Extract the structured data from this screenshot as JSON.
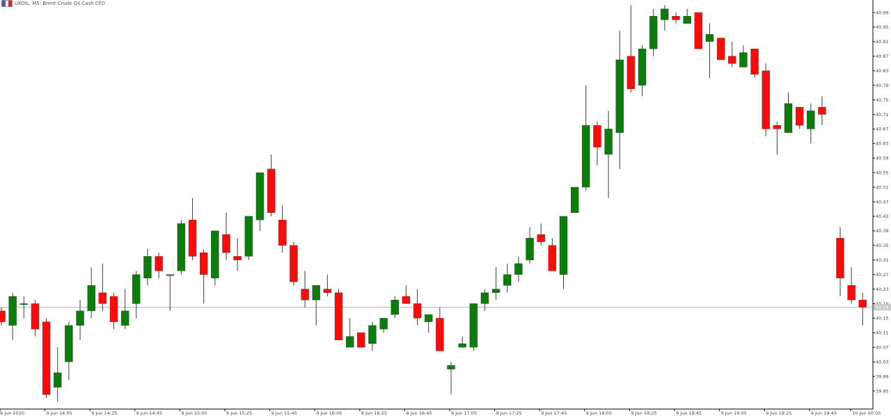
{
  "header": {
    "title": "UKOIL, M5: Brent Crude Oil Cash CFD",
    "icon": "flag-icon"
  },
  "colors": {
    "bull": "#0a7d0a",
    "bear": "#ff0a0a",
    "wick": "#3a3a3a",
    "axis": "#000000",
    "bidline": "#b4b4b4"
  },
  "chart_data": {
    "type": "candlestick",
    "title": "UKOIL, M5: Brent Crude Oil Cash CFD",
    "xlabel": "",
    "ylabel": "",
    "ylim": [
      39.93,
      41.01
    ],
    "grid": false,
    "y_ticks": [
      "39.95",
      "39.99",
      "40.03",
      "40.07",
      "40.11",
      "40.15",
      "40.19",
      "40.23",
      "40.27",
      "40.31",
      "40.35",
      "40.39",
      "40.43",
      "40.47",
      "40.51",
      "40.55",
      "40.59",
      "40.63",
      "40.67",
      "40.71",
      "40.75",
      "40.79",
      "40.83",
      "40.87",
      "40.91",
      "40.95",
      "40.99"
    ],
    "x_ticks": [
      "9 Jun 2020",
      "9 Jun 14:05",
      "9 Jun 14:25",
      "9 Jun 14:45",
      "9 Jun 15:05",
      "9 Jun 15:25",
      "9 Jun 15:45",
      "9 Jun 16:05",
      "9 Jun 16:25",
      "9 Jun 16:45",
      "9 Jun 17:05",
      "9 Jun 17:25",
      "9 Jun 17:45",
      "9 Jun 18:05",
      "9 Jun 18:25",
      "9 Jun 18:45",
      "9 Jun 19:05",
      "9 Jun 19:25",
      "9 Jun 19:45",
      "10 Jun 00:05"
    ],
    "current_price": "40.18",
    "current_value": 40.18,
    "candles": [
      {
        "o": 40.17,
        "h": 40.18,
        "l": 40.13,
        "c": 40.14
      },
      {
        "o": 40.13,
        "h": 40.22,
        "l": 40.09,
        "c": 40.21
      },
      {
        "o": 40.19,
        "h": 40.21,
        "l": 40.15,
        "c": 40.19
      },
      {
        "o": 40.19,
        "h": 40.2,
        "l": 40.1,
        "c": 40.12
      },
      {
        "o": 40.14,
        "h": 40.15,
        "l": 39.93,
        "c": 39.94
      },
      {
        "o": 39.96,
        "h": 40.07,
        "l": 39.92,
        "c": 40.0
      },
      {
        "o": 40.03,
        "h": 40.14,
        "l": 39.98,
        "c": 40.13
      },
      {
        "o": 40.13,
        "h": 40.2,
        "l": 40.09,
        "c": 40.17
      },
      {
        "o": 40.17,
        "h": 40.29,
        "l": 40.15,
        "c": 40.24
      },
      {
        "o": 40.22,
        "h": 40.3,
        "l": 40.17,
        "c": 40.19
      },
      {
        "o": 40.21,
        "h": 40.22,
        "l": 40.12,
        "c": 40.14
      },
      {
        "o": 40.13,
        "h": 40.23,
        "l": 40.12,
        "c": 40.17
      },
      {
        "o": 40.19,
        "h": 40.28,
        "l": 40.15,
        "c": 40.27
      },
      {
        "o": 40.26,
        "h": 40.34,
        "l": 40.24,
        "c": 40.32
      },
      {
        "o": 40.32,
        "h": 40.33,
        "l": 40.26,
        "c": 40.28
      },
      {
        "o": 40.27,
        "h": 40.27,
        "l": 40.17,
        "c": 40.27
      },
      {
        "o": 40.28,
        "h": 40.42,
        "l": 40.27,
        "c": 40.41
      },
      {
        "o": 40.42,
        "h": 40.48,
        "l": 40.31,
        "c": 40.32
      },
      {
        "o": 40.33,
        "h": 40.34,
        "l": 40.19,
        "c": 40.27
      },
      {
        "o": 40.26,
        "h": 40.39,
        "l": 40.24,
        "c": 40.39
      },
      {
        "o": 40.38,
        "h": 40.44,
        "l": 40.31,
        "c": 40.33
      },
      {
        "o": 40.32,
        "h": 40.37,
        "l": 40.28,
        "c": 40.31
      },
      {
        "o": 40.32,
        "h": 40.43,
        "l": 40.31,
        "c": 40.43
      },
      {
        "o": 40.42,
        "h": 40.55,
        "l": 40.39,
        "c": 40.55
      },
      {
        "o": 40.56,
        "h": 40.6,
        "l": 40.43,
        "c": 40.44
      },
      {
        "o": 40.42,
        "h": 40.46,
        "l": 40.33,
        "c": 40.35
      },
      {
        "o": 40.35,
        "h": 40.36,
        "l": 40.24,
        "c": 40.25
      },
      {
        "o": 40.23,
        "h": 40.28,
        "l": 40.18,
        "c": 40.2
      },
      {
        "o": 40.2,
        "h": 40.24,
        "l": 40.13,
        "c": 40.24
      },
      {
        "o": 40.23,
        "h": 40.27,
        "l": 40.21,
        "c": 40.22
      },
      {
        "o": 40.22,
        "h": 40.23,
        "l": 40.09,
        "c": 40.09
      },
      {
        "o": 40.07,
        "h": 40.15,
        "l": 40.07,
        "c": 40.1
      },
      {
        "o": 40.11,
        "h": 40.11,
        "l": 40.07,
        "c": 40.07
      },
      {
        "o": 40.08,
        "h": 40.14,
        "l": 40.06,
        "c": 40.13
      },
      {
        "o": 40.12,
        "h": 40.15,
        "l": 40.11,
        "c": 40.15
      },
      {
        "o": 40.16,
        "h": 40.21,
        "l": 40.15,
        "c": 40.2
      },
      {
        "o": 40.21,
        "h": 40.24,
        "l": 40.19,
        "c": 40.19
      },
      {
        "o": 40.19,
        "h": 40.23,
        "l": 40.13,
        "c": 40.15
      },
      {
        "o": 40.14,
        "h": 40.16,
        "l": 40.11,
        "c": 40.16
      },
      {
        "o": 40.15,
        "h": 40.18,
        "l": 40.06,
        "c": 40.06
      },
      {
        "o": 40.01,
        "h": 40.03,
        "l": 39.94,
        "c": 40.02
      },
      {
        "o": 40.07,
        "h": 40.1,
        "l": 40.07,
        "c": 40.08
      },
      {
        "o": 40.07,
        "h": 40.19,
        "l": 40.06,
        "c": 40.19
      },
      {
        "o": 40.19,
        "h": 40.23,
        "l": 40.17,
        "c": 40.22
      },
      {
        "o": 40.22,
        "h": 40.29,
        "l": 40.2,
        "c": 40.23
      },
      {
        "o": 40.24,
        "h": 40.3,
        "l": 40.22,
        "c": 40.27
      },
      {
        "o": 40.27,
        "h": 40.32,
        "l": 40.25,
        "c": 40.3
      },
      {
        "o": 40.31,
        "h": 40.4,
        "l": 40.3,
        "c": 40.37
      },
      {
        "o": 40.38,
        "h": 40.41,
        "l": 40.35,
        "c": 40.36
      },
      {
        "o": 40.35,
        "h": 40.37,
        "l": 40.28,
        "c": 40.28
      },
      {
        "o": 40.27,
        "h": 40.43,
        "l": 40.23,
        "c": 40.43
      },
      {
        "o": 40.44,
        "h": 40.51,
        "l": 40.44,
        "c": 40.51
      },
      {
        "o": 40.51,
        "h": 40.79,
        "l": 40.5,
        "c": 40.68
      },
      {
        "o": 40.68,
        "h": 40.69,
        "l": 40.57,
        "c": 40.62
      },
      {
        "o": 40.6,
        "h": 40.72,
        "l": 40.48,
        "c": 40.67
      },
      {
        "o": 40.66,
        "h": 40.94,
        "l": 40.56,
        "c": 40.86
      },
      {
        "o": 40.87,
        "h": 41.01,
        "l": 40.77,
        "c": 40.78
      },
      {
        "o": 40.79,
        "h": 40.9,
        "l": 40.76,
        "c": 40.89
      },
      {
        "o": 40.89,
        "h": 41.0,
        "l": 40.87,
        "c": 40.98
      },
      {
        "o": 40.97,
        "h": 41.01,
        "l": 40.94,
        "c": 41.0
      },
      {
        "o": 40.98,
        "h": 40.99,
        "l": 40.96,
        "c": 40.97
      },
      {
        "o": 40.96,
        "h": 41.0,
        "l": 40.96,
        "c": 40.98
      },
      {
        "o": 40.99,
        "h": 40.99,
        "l": 40.89,
        "c": 40.89
      },
      {
        "o": 40.91,
        "h": 40.96,
        "l": 40.81,
        "c": 40.93
      },
      {
        "o": 40.92,
        "h": 40.92,
        "l": 40.86,
        "c": 40.86
      },
      {
        "o": 40.87,
        "h": 40.91,
        "l": 40.84,
        "c": 40.85
      },
      {
        "o": 40.84,
        "h": 40.9,
        "l": 40.84,
        "c": 40.88
      },
      {
        "o": 40.89,
        "h": 40.89,
        "l": 40.81,
        "c": 40.82
      },
      {
        "o": 40.83,
        "h": 40.85,
        "l": 40.65,
        "c": 40.67
      },
      {
        "o": 40.68,
        "h": 40.69,
        "l": 40.6,
        "c": 40.67
      },
      {
        "o": 40.66,
        "h": 40.77,
        "l": 40.66,
        "c": 40.74
      },
      {
        "o": 40.73,
        "h": 40.73,
        "l": 40.67,
        "c": 40.68
      },
      {
        "o": 40.67,
        "h": 40.74,
        "l": 40.63,
        "c": 40.72
      },
      {
        "o": 40.73,
        "h": 40.76,
        "l": 40.68,
        "c": 40.71
      },
      {
        "o": 40.37,
        "h": 40.4,
        "l": 40.21,
        "c": 40.26
      },
      {
        "o": 40.24,
        "h": 40.29,
        "l": 40.19,
        "c": 40.2
      },
      {
        "o": 40.2,
        "h": 40.22,
        "l": 40.13,
        "c": 40.18
      }
    ]
  }
}
